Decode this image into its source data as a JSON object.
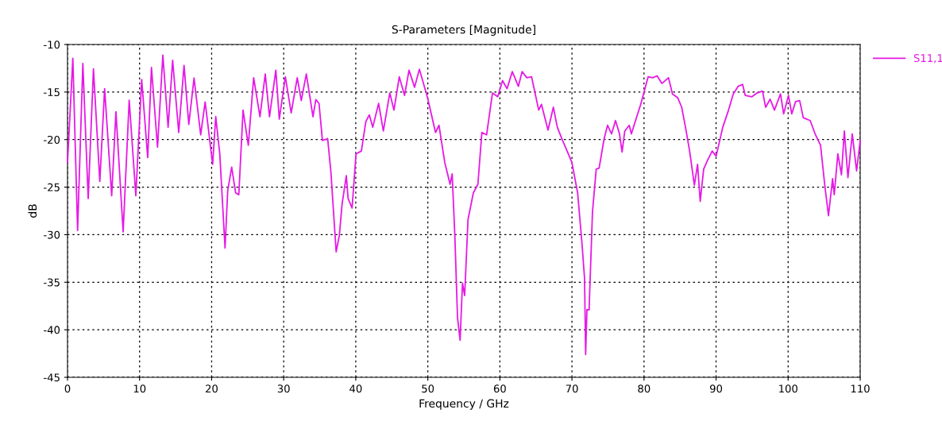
{
  "chart_data": {
    "type": "line",
    "title": "S-Parameters [Magnitude]",
    "xlabel": "Frequency / GHz",
    "ylabel": "dB",
    "xlim": [
      0,
      110
    ],
    "xticks": [
      0,
      10,
      20,
      30,
      40,
      50,
      60,
      70,
      80,
      90,
      100,
      110
    ],
    "ylim": [
      -45,
      -10
    ],
    "yticks": [
      -45,
      -40,
      -35,
      -30,
      -25,
      -20,
      -15,
      -10
    ],
    "grid": true,
    "legend": "top right",
    "marker": "none",
    "line_style": "solid",
    "series": [
      {
        "name": "S11,1",
        "color": "#e619e6",
        "x": [
          0,
          0.74,
          1.4,
          2.13,
          2.87,
          3.6,
          4.48,
          5.15,
          6.13,
          6.72,
          7.72,
          8.56,
          9.48,
          10.29,
          11.13,
          11.65,
          12.49,
          13.23,
          13.96,
          14.59,
          15.43,
          16.17,
          16.83,
          17.56,
          18.48,
          19.1,
          20.14,
          20.57,
          21.13,
          21.86,
          22.23,
          22.78,
          23.33,
          23.77,
          24.36,
          25.09,
          25.83,
          26.71,
          27.44,
          28.03,
          28.91,
          29.39,
          30.23,
          31.04,
          31.88,
          32.44,
          33.14,
          34.06,
          34.46,
          34.9,
          35.38,
          36.1,
          36.55,
          37.28,
          37.72,
          38.1,
          38.69,
          38.94,
          39.49,
          40.04,
          40.78,
          41.4,
          41.88,
          42.36,
          43.17,
          43.83,
          44.72,
          45.3,
          46.04,
          46.77,
          47.39,
          48.16,
          48.83,
          49.96,
          51.07,
          51.55,
          52.35,
          53.09,
          53.38,
          53.75,
          54.12,
          54.48,
          54.81,
          55.11,
          55.58,
          56.32,
          56.95,
          57.5,
          58.16,
          58.97,
          59.7,
          60.37,
          60.99,
          61.72,
          62.57,
          63.08,
          63.74,
          64.4,
          65.39,
          65.77,
          66.68,
          67.42,
          67.97,
          68.7,
          69.33,
          69.99,
          70.79,
          71.39,
          71.75,
          71.9,
          72.08,
          72.38,
          72.85,
          73.37,
          73.77,
          74.47,
          74.94,
          75.5,
          76.05,
          76.6,
          76.96,
          77.33,
          77.95,
          78.25,
          78.99,
          79.54,
          80.57,
          81.2,
          81.82,
          82.48,
          83.4,
          83.95,
          84.68,
          85.23,
          85.78,
          86.33,
          86.99,
          87.43,
          87.8,
          88.28,
          88.8,
          89.46,
          90.01,
          90.93,
          91.73,
          92.39,
          93.06,
          93.68,
          94.05,
          94.97,
          95.7,
          96.44,
          96.88,
          97.5,
          98.1,
          98.94,
          99.38,
          100.05,
          100.5,
          101.04,
          101.6,
          102.1,
          103.06,
          103.8,
          104.5,
          105.07,
          105.6,
          106.17,
          106.4,
          106.9,
          107.4,
          107.8,
          108.3,
          108.9,
          109.5,
          110
        ],
        "values": [
          -22.4,
          -11.45,
          -29.55,
          -12.0,
          -26.2,
          -12.56,
          -24.4,
          -14.65,
          -25.9,
          -17.07,
          -29.7,
          -15.85,
          -25.9,
          -13.68,
          -21.9,
          -12.42,
          -20.8,
          -11.11,
          -18.7,
          -11.67,
          -19.25,
          -12.2,
          -18.4,
          -13.53,
          -19.5,
          -16.04,
          -22.6,
          -17.58,
          -21.5,
          -31.4,
          -25.4,
          -22.9,
          -25.6,
          -25.8,
          -16.9,
          -20.6,
          -13.5,
          -17.6,
          -13.1,
          -17.6,
          -12.7,
          -17.85,
          -13.4,
          -17.2,
          -13.5,
          -15.9,
          -13.1,
          -17.6,
          -15.8,
          -16.2,
          -20.1,
          -19.9,
          -23.4,
          -31.8,
          -30.1,
          -26.8,
          -23.8,
          -26.2,
          -27.2,
          -21.5,
          -21.2,
          -18.1,
          -17.4,
          -18.7,
          -16.2,
          -19.1,
          -15.1,
          -16.9,
          -13.4,
          -15.35,
          -12.7,
          -14.5,
          -12.6,
          -15.6,
          -19.25,
          -18.5,
          -22.4,
          -24.7,
          -23.6,
          -30.1,
          -38.7,
          -41.1,
          -35.1,
          -36.4,
          -28.4,
          -25.6,
          -24.7,
          -19.25,
          -19.5,
          -15.1,
          -15.5,
          -13.8,
          -14.65,
          -12.85,
          -14.4,
          -12.85,
          -13.5,
          -13.4,
          -16.9,
          -16.3,
          -19.0,
          -16.6,
          -18.7,
          -20.1,
          -21.2,
          -22.4,
          -25.6,
          -30.9,
          -34.6,
          -42.6,
          -37.9,
          -37.9,
          -27.6,
          -23.1,
          -23.0,
          -19.9,
          -18.5,
          -19.4,
          -18.0,
          -19.4,
          -21.3,
          -19.1,
          -18.5,
          -19.4,
          -17.6,
          -16.3,
          -13.4,
          -13.5,
          -13.3,
          -14.1,
          -13.5,
          -15.2,
          -15.6,
          -16.6,
          -18.8,
          -21.2,
          -24.8,
          -22.6,
          -26.5,
          -23.1,
          -22.2,
          -21.2,
          -21.75,
          -18.7,
          -16.9,
          -15.2,
          -14.4,
          -14.2,
          -15.35,
          -15.5,
          -15.1,
          -14.9,
          -16.6,
          -15.75,
          -16.9,
          -15.2,
          -17.3,
          -15.35,
          -17.3,
          -16.0,
          -15.9,
          -17.7,
          -18.0,
          -19.5,
          -20.6,
          -24.7,
          -28.0,
          -24.1,
          -25.8,
          -21.5,
          -23.7,
          -19.1,
          -24.0,
          -19.4,
          -23.3,
          -20.1
        ]
      }
    ]
  }
}
